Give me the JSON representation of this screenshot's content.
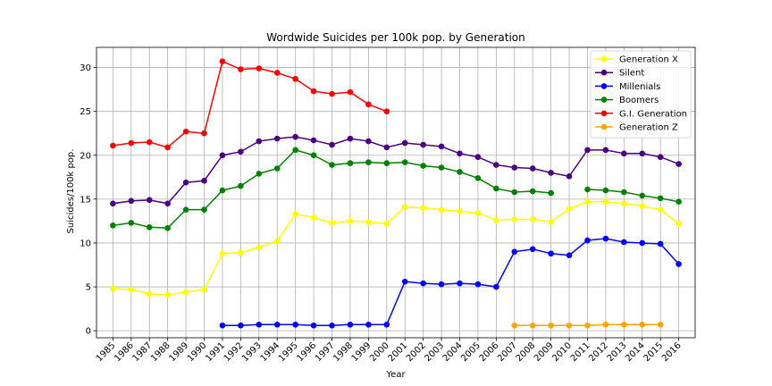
{
  "chart_data": {
    "type": "line",
    "title": "Wordwide Suicides per 100k pop. by Generation",
    "xlabel": "Year",
    "ylabel": "Suicides/100k pop.",
    "x": [
      1985,
      1986,
      1987,
      1988,
      1989,
      1990,
      1991,
      1992,
      1993,
      1994,
      1995,
      1996,
      1997,
      1998,
      1999,
      2000,
      2001,
      2002,
      2003,
      2004,
      2005,
      2006,
      2007,
      2008,
      2009,
      2010,
      2011,
      2012,
      2013,
      2014,
      2015,
      2016
    ],
    "xlim": [
      1984.1,
      2016.9
    ],
    "ylim": [
      -0.8,
      32.3
    ],
    "yticks": [
      0,
      5,
      10,
      15,
      20,
      25,
      30
    ],
    "grid": true,
    "legend_position": "top-right",
    "series": [
      {
        "name": "Generation X",
        "color": "#ffff00",
        "values": [
          4.8,
          4.7,
          4.2,
          4.1,
          4.4,
          4.7,
          8.8,
          8.9,
          9.5,
          10.2,
          13.3,
          12.9,
          12.3,
          12.5,
          12.4,
          12.2,
          14.1,
          14.0,
          13.8,
          13.6,
          13.4,
          12.6,
          12.7,
          12.7,
          12.4,
          13.9,
          14.7,
          14.7,
          14.5,
          14.2,
          13.8,
          12.2
        ]
      },
      {
        "name": "Silent",
        "color": "#4b0082",
        "values": [
          14.5,
          14.8,
          14.9,
          14.5,
          16.9,
          17.1,
          20.0,
          20.4,
          21.6,
          21.9,
          22.1,
          21.7,
          21.2,
          21.9,
          21.6,
          20.9,
          21.4,
          21.2,
          21.0,
          20.2,
          19.8,
          18.9,
          18.6,
          18.5,
          18.0,
          17.6,
          20.6,
          20.6,
          20.2,
          20.2,
          19.8,
          19.0
        ]
      },
      {
        "name": "Millenials",
        "color": "#0000ff",
        "values": [
          null,
          null,
          null,
          null,
          null,
          null,
          0.6,
          0.6,
          0.7,
          0.7,
          0.7,
          0.6,
          0.6,
          0.7,
          0.7,
          0.7,
          5.6,
          5.4,
          5.3,
          5.4,
          5.3,
          5.0,
          9.0,
          9.3,
          8.8,
          8.6,
          10.3,
          10.5,
          10.1,
          10.0,
          9.9,
          7.6
        ]
      },
      {
        "name": "Boomers",
        "color": "#008000",
        "values": [
          12.0,
          12.3,
          11.8,
          11.7,
          13.8,
          13.8,
          16.0,
          16.5,
          17.9,
          18.5,
          20.6,
          20.0,
          18.9,
          19.1,
          19.2,
          19.1,
          19.2,
          18.8,
          18.6,
          18.1,
          17.4,
          16.2,
          15.8,
          15.9,
          15.7,
          null,
          16.1,
          16.0,
          15.8,
          15.4,
          15.1,
          14.7
        ]
      },
      {
        "name": "G.I. Generation",
        "color": "#ff0000",
        "values": [
          21.1,
          21.4,
          21.5,
          20.9,
          22.7,
          22.5,
          30.7,
          29.8,
          29.9,
          29.4,
          28.7,
          27.3,
          27.0,
          27.2,
          25.8,
          25.0,
          null,
          null,
          null,
          null,
          null,
          null,
          null,
          null,
          null,
          null,
          null,
          null,
          null,
          null,
          null,
          null
        ]
      },
      {
        "name": "Generation Z",
        "color": "#ffa500",
        "values": [
          null,
          null,
          null,
          null,
          null,
          null,
          null,
          null,
          null,
          null,
          null,
          null,
          null,
          null,
          null,
          null,
          null,
          null,
          null,
          null,
          null,
          null,
          0.6,
          0.6,
          0.6,
          0.6,
          0.6,
          0.7,
          0.7,
          0.7,
          0.7,
          null
        ]
      }
    ]
  }
}
